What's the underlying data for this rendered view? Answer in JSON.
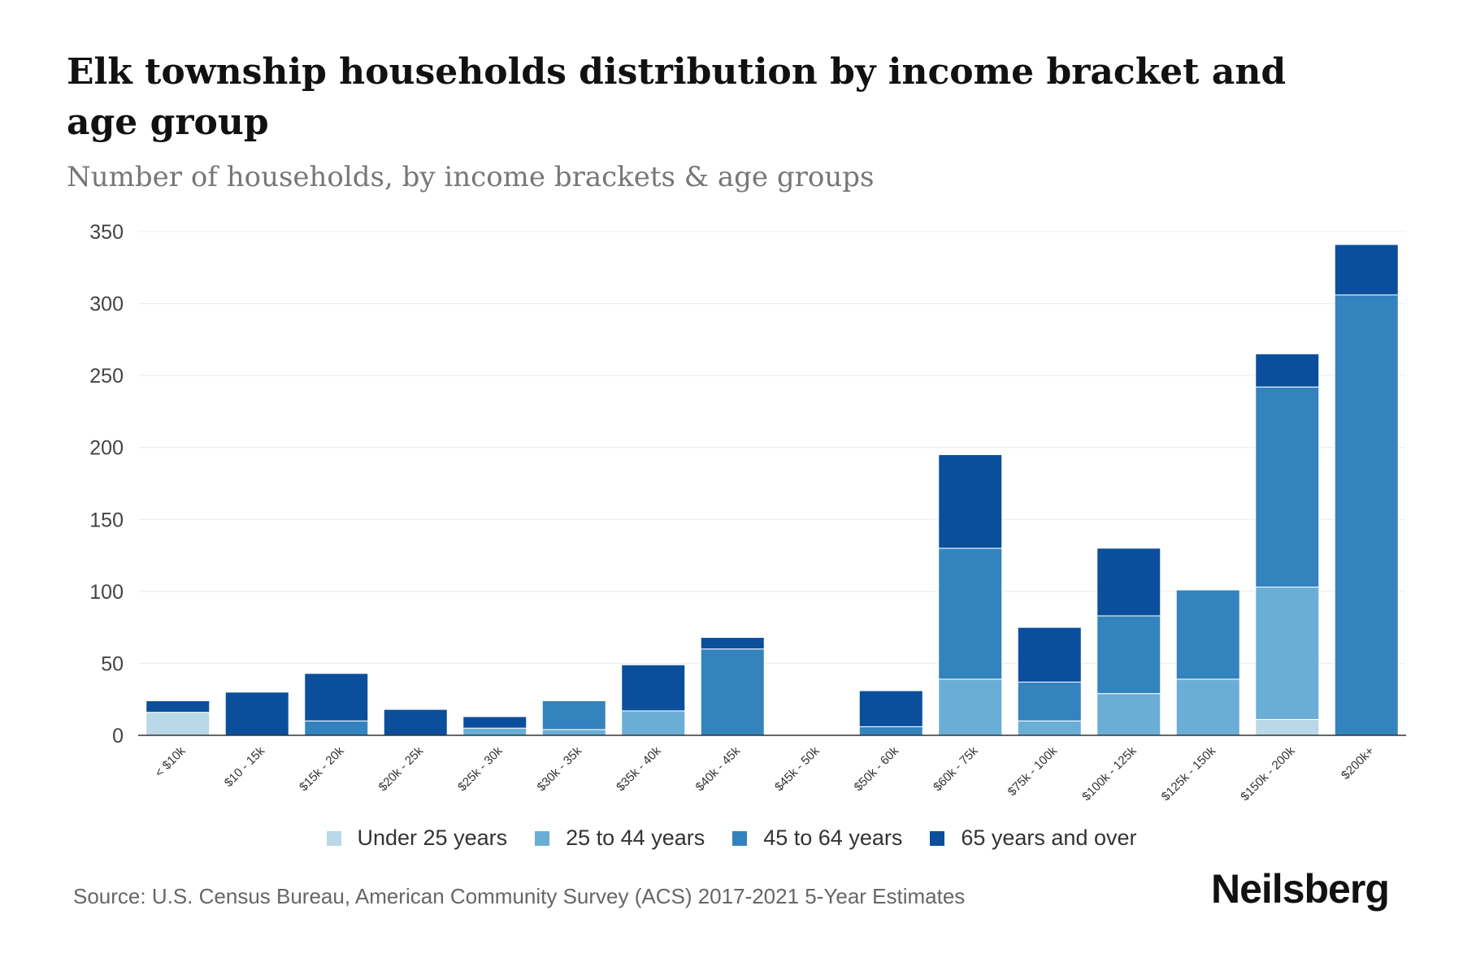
{
  "header": {
    "title": "Elk township households distribution by income bracket and age group",
    "subtitle": "Number of households, by income brackets & age groups"
  },
  "footer": {
    "source": "Source: U.S. Census Bureau, American Community Survey (ACS) 2017-2021 5-Year Estimates",
    "logo": "Neilsberg"
  },
  "chart_data": {
    "type": "bar",
    "stacked": true,
    "title": "Elk township households distribution by income bracket and age group",
    "subtitle": "Number of households, by income brackets & age groups",
    "xlabel": "",
    "ylabel": "",
    "ylim": [
      0,
      350
    ],
    "yticks": [
      0,
      50,
      100,
      150,
      200,
      250,
      300,
      350
    ],
    "grid": true,
    "legend_position": "bottom",
    "categories": [
      "< $10k",
      "$10 - 15k",
      "$15k - 20k",
      "$20k - 25k",
      "$25k - 30k",
      "$30k - 35k",
      "$35k - 40k",
      "$40k - 45k",
      "$45k - 50k",
      "$50k - 60k",
      "$60k - 75k",
      "$75k - 100k",
      "$100k - 125k",
      "$125k - 150k",
      "$150k - 200k",
      "$200k+"
    ],
    "series": [
      {
        "name": "Under 25 years",
        "color": "#b9d8e8",
        "values": [
          16,
          0,
          0,
          0,
          0,
          0,
          0,
          0,
          0,
          0,
          0,
          0,
          0,
          0,
          11,
          0
        ]
      },
      {
        "name": "25 to 44 years",
        "color": "#6aaed6",
        "values": [
          0,
          0,
          0,
          0,
          5,
          4,
          17,
          0,
          0,
          0,
          39,
          10,
          29,
          39,
          92,
          0
        ]
      },
      {
        "name": "45 to 64 years",
        "color": "#3383be",
        "values": [
          0,
          0,
          10,
          0,
          0,
          20,
          0,
          60,
          0,
          6,
          91,
          27,
          54,
          62,
          139,
          306
        ]
      },
      {
        "name": "65 years and over",
        "color": "#0b4f9c",
        "values": [
          8,
          30,
          33,
          18,
          8,
          0,
          32,
          8,
          0,
          25,
          65,
          38,
          47,
          0,
          23,
          35
        ]
      }
    ]
  }
}
